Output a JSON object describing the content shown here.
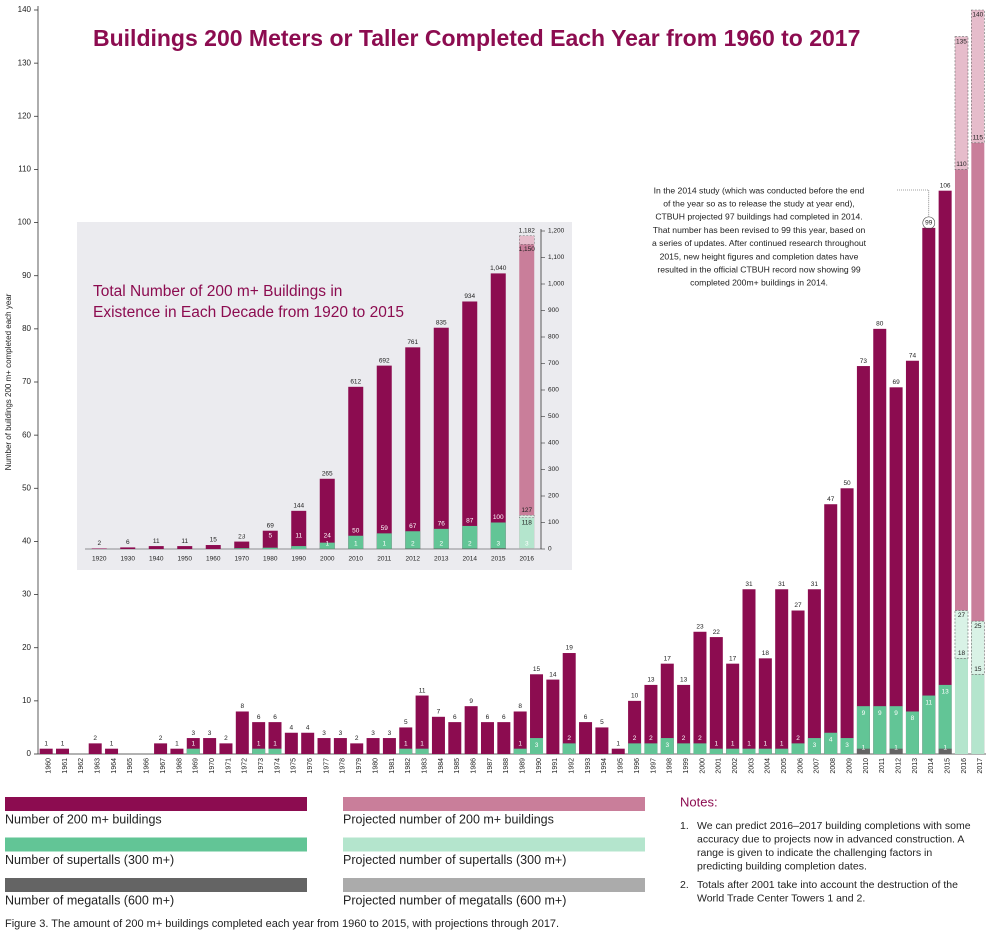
{
  "chart_data": [
    {
      "type": "bar",
      "title": "Buildings 200 Meters or Taller Completed Each Year from 1960 to 2017",
      "y_label": "Number of buildings 200 m+ completed each year",
      "categories": [
        "1960",
        "1961",
        "1962",
        "1963",
        "1964",
        "1965",
        "1966",
        "1967",
        "1968",
        "1969",
        "1970",
        "1971",
        "1972",
        "1973",
        "1974",
        "1975",
        "1976",
        "1977",
        "1978",
        "1979",
        "1980",
        "1981",
        "1982",
        "1983",
        "1984",
        "1985",
        "1986",
        "1987",
        "1988",
        "1989",
        "1990",
        "1991",
        "1992",
        "1993",
        "1994",
        "1995",
        "1996",
        "1997",
        "1998",
        "1999",
        "2000",
        "2001",
        "2002",
        "2003",
        "2004",
        "2005",
        "2006",
        "2007",
        "2008",
        "2009",
        "2010",
        "2011",
        "2012",
        "2013",
        "2014",
        "2015",
        "2016",
        "2017"
      ],
      "ylim": [
        0,
        140
      ],
      "yticks": [
        0,
        10,
        20,
        30,
        40,
        50,
        60,
        70,
        80,
        90,
        100,
        110,
        120,
        130,
        140
      ],
      "series": [
        {
          "name": "Number of 200 m+ buildings",
          "color": "#8c0c50",
          "values": [
            1,
            1,
            0,
            2,
            1,
            0,
            0,
            2,
            1,
            3,
            3,
            2,
            8,
            6,
            6,
            4,
            4,
            3,
            3,
            2,
            3,
            3,
            5,
            11,
            7,
            6,
            9,
            6,
            6,
            8,
            15,
            14,
            19,
            6,
            5,
            1,
            10,
            13,
            17,
            13,
            23,
            22,
            17,
            31,
            18,
            31,
            27,
            31,
            47,
            50,
            73,
            80,
            69,
            74,
            99,
            106,
            null,
            null
          ]
        },
        {
          "name": "Number of supertalls (300 m+)",
          "color": "#62c596",
          "values": [
            0,
            0,
            0,
            0,
            0,
            0,
            0,
            0,
            0,
            1,
            0,
            0,
            0,
            1,
            1,
            0,
            0,
            0,
            0,
            0,
            0,
            0,
            1,
            1,
            0,
            0,
            0,
            0,
            0,
            1,
            3,
            0,
            2,
            0,
            0,
            0,
            2,
            2,
            3,
            2,
            2,
            1,
            1,
            1,
            1,
            1,
            2,
            3,
            4,
            3,
            9,
            9,
            9,
            8,
            11,
            13,
            null,
            null
          ]
        },
        {
          "name": "Number of megatalls (600 m+)",
          "color": "#646464",
          "values": [
            0,
            0,
            0,
            0,
            0,
            0,
            0,
            0,
            0,
            0,
            0,
            0,
            0,
            0,
            0,
            0,
            0,
            0,
            0,
            0,
            0,
            0,
            0,
            0,
            0,
            0,
            0,
            0,
            0,
            0,
            0,
            0,
            0,
            0,
            0,
            0,
            0,
            0,
            0,
            0,
            0,
            0,
            0,
            0,
            0,
            0,
            0,
            0,
            0,
            0,
            1,
            0,
            1,
            0,
            0,
            1,
            null,
            null
          ]
        },
        {
          "name": "Projected number of 200 m+ buildings",
          "color": "#c97e9a",
          "high_color": "#e6bccb",
          "values": [
            null,
            null,
            null,
            null,
            null,
            null,
            null,
            null,
            null,
            null,
            null,
            null,
            null,
            null,
            null,
            null,
            null,
            null,
            null,
            null,
            null,
            null,
            null,
            null,
            null,
            null,
            null,
            null,
            null,
            null,
            null,
            null,
            null,
            null,
            null,
            null,
            null,
            null,
            null,
            null,
            null,
            null,
            null,
            null,
            null,
            null,
            null,
            null,
            null,
            null,
            null,
            null,
            null,
            null,
            null,
            null,
            110,
            115
          ],
          "values_high": [
            null,
            null,
            null,
            null,
            null,
            null,
            null,
            null,
            null,
            null,
            null,
            null,
            null,
            null,
            null,
            null,
            null,
            null,
            null,
            null,
            null,
            null,
            null,
            null,
            null,
            null,
            null,
            null,
            null,
            null,
            null,
            null,
            null,
            null,
            null,
            null,
            null,
            null,
            null,
            null,
            null,
            null,
            null,
            null,
            null,
            null,
            null,
            null,
            null,
            null,
            null,
            null,
            null,
            null,
            null,
            null,
            135,
            140
          ]
        },
        {
          "name": "Projected number of supertalls (300 m+)",
          "color": "#b4e5cd",
          "high_color": "#d9f2e6",
          "values": [
            null,
            null,
            null,
            null,
            null,
            null,
            null,
            null,
            null,
            null,
            null,
            null,
            null,
            null,
            null,
            null,
            null,
            null,
            null,
            null,
            null,
            null,
            null,
            null,
            null,
            null,
            null,
            null,
            null,
            null,
            null,
            null,
            null,
            null,
            null,
            null,
            null,
            null,
            null,
            null,
            null,
            null,
            null,
            null,
            null,
            null,
            null,
            null,
            null,
            null,
            null,
            null,
            null,
            null,
            null,
            null,
            18,
            15
          ],
          "values_high": [
            null,
            null,
            null,
            null,
            null,
            null,
            null,
            null,
            null,
            null,
            null,
            null,
            null,
            null,
            null,
            null,
            null,
            null,
            null,
            null,
            null,
            null,
            null,
            null,
            null,
            null,
            null,
            null,
            null,
            null,
            null,
            null,
            null,
            null,
            null,
            null,
            null,
            null,
            null,
            null,
            null,
            null,
            null,
            null,
            null,
            null,
            null,
            null,
            null,
            null,
            null,
            null,
            null,
            null,
            null,
            null,
            27,
            25
          ]
        },
        {
          "name": "Projected number of megatalls (600 m+)",
          "color": "#ababab"
        }
      ],
      "annotation": [
        "In the 2014 study (which was conducted before the end",
        "of the year so as to release the study at year end),",
        "CTBUH projected 97 buildings had completed in 2014.",
        "That number has been revised to 99 this year, based on",
        "a series of updates. After continued research throughout",
        "2015, new height figures and completion dates have",
        "resulted in the official CTBUH record now showing 99",
        "completed 200m+ buildings in 2014."
      ],
      "notes_title": "Notes:",
      "notes": [
        {
          "marker": "1.",
          "lines": [
            "We can predict 2016–2017 building completions with some",
            "accuracy due to projects now in advanced construction.  A",
            "range is given to indicate the challenging factors in",
            "predicting building completion dates."
          ]
        },
        {
          "marker": "2.",
          "lines": [
            "Totals after 2001 take into account the destruction of the",
            "World Trade Center Towers 1 and 2."
          ]
        }
      ],
      "caption": "Figure 3. The amount of 200 m+ buildings completed each year from 1960 to 2015, with projections through 2017."
    },
    {
      "type": "bar",
      "title": [
        "Total Number of 200 m+ Buildings  in",
        "Existence in Each Decade from 1920 to 2015"
      ],
      "categories": [
        "1920",
        "1930",
        "1940",
        "1950",
        "1960",
        "1970",
        "1980",
        "1990",
        "2000",
        "2010",
        "2011",
        "2012",
        "2013",
        "2014",
        "2015",
        "2016"
      ],
      "ylim": [
        0,
        1200
      ],
      "yticks": [
        0,
        100,
        200,
        300,
        400,
        500,
        600,
        700,
        800,
        900,
        {
          "value": 1000,
          "label": "1,000"
        },
        {
          "value": 1100,
          "label": "1,100"
        },
        {
          "value": 1200,
          "label": "1,200"
        }
      ],
      "series": [
        {
          "color": "#8c0c50",
          "values": [
            2,
            6,
            11,
            11,
            15,
            28,
            69,
            144,
            265,
            612,
            692,
            761,
            835,
            934,
            1040,
            null
          ],
          "value_labels": [
            "2",
            "6",
            "11",
            "11",
            "15",
            "28",
            "69",
            "144",
            "265",
            "612",
            "692",
            "761",
            "835",
            "934",
            "1,040",
            null
          ]
        },
        {
          "color": "#62c596",
          "values": [
            0,
            0,
            0,
            0,
            0,
            3,
            5,
            11,
            24,
            50,
            59,
            67,
            76,
            87,
            100,
            null
          ]
        },
        {
          "color": "#646464",
          "values": [
            0,
            0,
            0,
            0,
            0,
            0,
            0,
            0,
            1,
            1,
            1,
            2,
            2,
            2,
            3,
            null
          ]
        },
        {
          "color": "#c97e9a",
          "high_color": "#e6bccb",
          "values": [
            null,
            null,
            null,
            null,
            null,
            null,
            null,
            null,
            null,
            null,
            null,
            null,
            null,
            null,
            null,
            1150
          ],
          "value_labels": [
            null,
            null,
            null,
            null,
            null,
            null,
            null,
            null,
            null,
            null,
            null,
            null,
            null,
            null,
            null,
            "1,150"
          ],
          "values_high": [
            null,
            null,
            null,
            null,
            null,
            null,
            null,
            null,
            null,
            null,
            null,
            null,
            null,
            null,
            null,
            1182
          ],
          "high_labels": [
            null,
            null,
            null,
            null,
            null,
            null,
            null,
            null,
            null,
            null,
            null,
            null,
            null,
            null,
            null,
            "1,182"
          ]
        },
        {
          "color": "#b4e5cd",
          "high_color": "#d9f2e6",
          "values": [
            null,
            null,
            null,
            null,
            null,
            null,
            null,
            null,
            null,
            null,
            null,
            null,
            null,
            null,
            null,
            118
          ],
          "values_high": [
            null,
            null,
            null,
            null,
            null,
            null,
            null,
            null,
            null,
            null,
            null,
            null,
            null,
            null,
            null,
            127
          ]
        },
        {
          "color": "#ababab",
          "values": [
            null,
            null,
            null,
            null,
            null,
            null,
            null,
            null,
            null,
            null,
            null,
            null,
            null,
            null,
            null,
            3
          ]
        }
      ]
    }
  ]
}
